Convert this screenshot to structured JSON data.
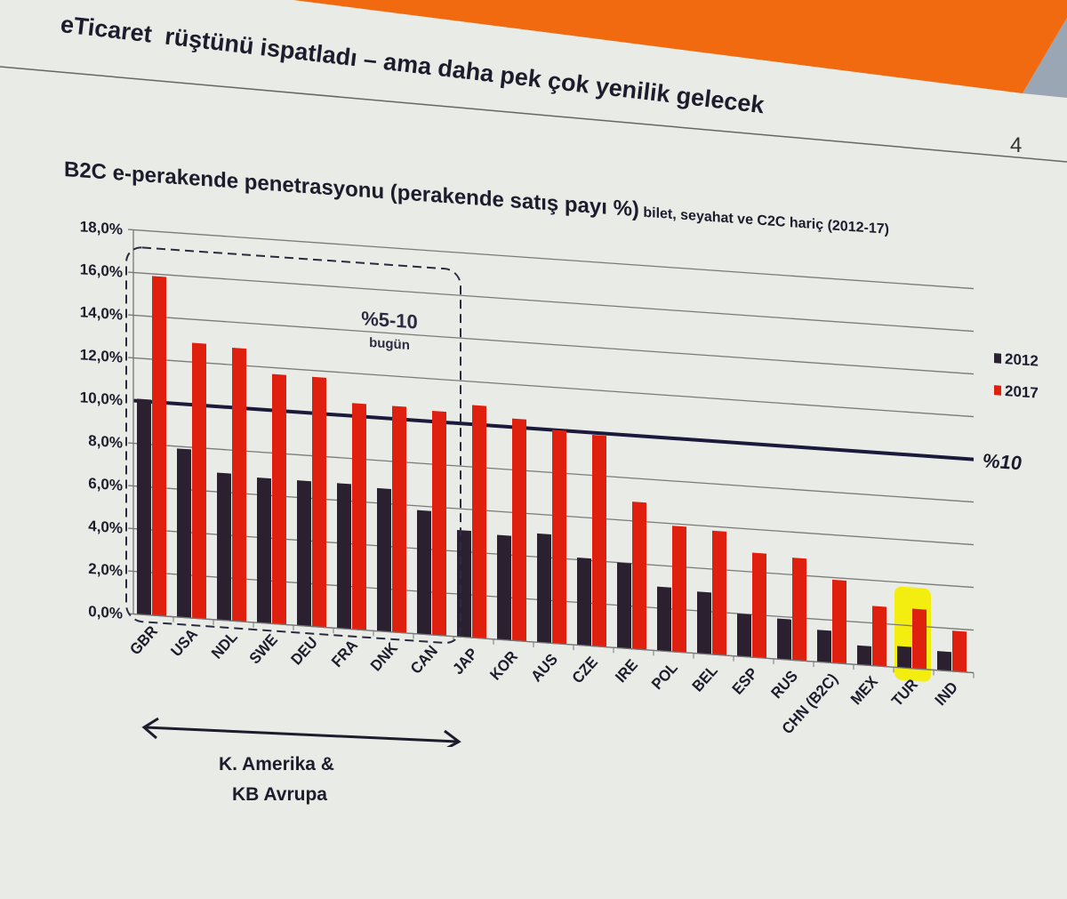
{
  "slide": {
    "title": "eTicaret  rüştünü ispatladı – ama daha pek çok yenilik gelecek",
    "page_number": "4",
    "accent_color": "#f26a10"
  },
  "chart_data": {
    "type": "bar",
    "title": "B2C e-perakende penetrasyonu (perakende satış payı %)",
    "subtitle": "bilet, seyahat ve C2C hariç (2012-17)",
    "categories": [
      "GBR",
      "USA",
      "NDL",
      "SWE",
      "DEU",
      "FRA",
      "DNK",
      "CAN",
      "JAP",
      "KOR",
      "AUS",
      "CZE",
      "IRE",
      "POL",
      "BEL",
      "ESP",
      "RUS",
      "CHN (B2C)",
      "MEX",
      "TUR",
      "IND"
    ],
    "series": [
      {
        "name": "2012",
        "color": "#2a2030",
        "values": [
          10.1,
          7.9,
          6.9,
          6.8,
          6.8,
          6.8,
          6.7,
          5.8,
          5.0,
          4.9,
          5.1,
          4.1,
          4.0,
          3.0,
          2.9,
          2.0,
          1.9,
          1.5,
          0.9,
          1.0,
          0.9
        ]
      },
      {
        "name": "2017",
        "color": "#e0200f",
        "values": [
          15.9,
          12.9,
          12.8,
          11.7,
          11.7,
          10.6,
          10.6,
          10.5,
          10.9,
          10.4,
          10.0,
          9.9,
          6.9,
          5.9,
          5.8,
          4.9,
          4.8,
          3.9,
          2.8,
          2.8,
          1.9
        ]
      }
    ],
    "yticks": [
      "0,0%",
      "2,0%",
      "4,0%",
      "6,0%",
      "8,0%",
      "10,0%",
      "12,0%",
      "14,0%",
      "16,0%",
      "18,0%"
    ],
    "ylim": [
      0,
      18
    ],
    "grid": true,
    "legend_position": "right",
    "reference_line": {
      "value": 10,
      "label": "%10"
    },
    "highlight": {
      "category": "TUR",
      "color": "#f4ee10"
    },
    "group_box": {
      "from": "GBR",
      "to": "CAN",
      "label": "%5-10",
      "sublabel": "bugün"
    },
    "region_annotation": {
      "line1": "K. Amerika &",
      "line2": "KB Avrupa"
    }
  }
}
